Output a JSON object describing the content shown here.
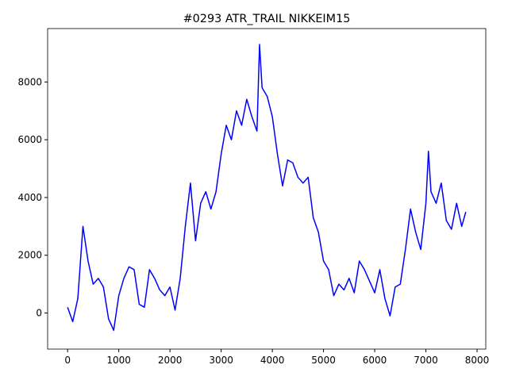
{
  "chart_data": {
    "type": "line",
    "title": "#0293 ATR_TRAIL NIKKEIM15",
    "x": [
      0,
      100,
      200,
      300,
      400,
      500,
      600,
      700,
      800,
      900,
      1000,
      1100,
      1200,
      1300,
      1400,
      1500,
      1600,
      1700,
      1800,
      1900,
      2000,
      2100,
      2200,
      2300,
      2400,
      2500,
      2600,
      2700,
      2800,
      2900,
      3000,
      3100,
      3200,
      3300,
      3400,
      3500,
      3600,
      3700,
      3750,
      3800,
      3900,
      4000,
      4100,
      4200,
      4300,
      4400,
      4500,
      4600,
      4700,
      4800,
      4900,
      5000,
      5100,
      5200,
      5300,
      5400,
      5500,
      5600,
      5700,
      5800,
      5900,
      6000,
      6100,
      6200,
      6300,
      6400,
      6500,
      6600,
      6700,
      6800,
      6900,
      7000,
      7050,
      7100,
      7200,
      7300,
      7400,
      7500,
      7600,
      7700,
      7780
    ],
    "series": [
      {
        "color": "#0000ff",
        "values": [
          200,
          -300,
          500,
          3000,
          1800,
          1000,
          1200,
          900,
          -200,
          -600,
          600,
          1200,
          1600,
          1500,
          300,
          200,
          1500,
          1200,
          800,
          600,
          900,
          100,
          1200,
          3000,
          4500,
          2500,
          3800,
          4200,
          3600,
          4200,
          5500,
          6500,
          6000,
          7000,
          6500,
          7400,
          6800,
          6300,
          9300,
          7800,
          7500,
          6800,
          5500,
          4400,
          5300,
          5200,
          4700,
          4500,
          4700,
          3300,
          2800,
          1800,
          1500,
          600,
          1000,
          800,
          1200,
          700,
          1800,
          1500,
          1100,
          700,
          1500,
          500,
          -100,
          900,
          1000,
          2200,
          3600,
          2800,
          2200,
          3800,
          5600,
          4200,
          3800,
          4500,
          3200,
          2900,
          3800,
          3000,
          3500
        ]
      }
    ],
    "xlim": [
      -390,
      8170
    ],
    "ylim": [
      -1250,
      9850
    ],
    "xticks": [
      0,
      1000,
      2000,
      3000,
      4000,
      5000,
      6000,
      7000,
      8000
    ],
    "yticks": [
      0,
      2000,
      4000,
      6000,
      8000
    ]
  }
}
